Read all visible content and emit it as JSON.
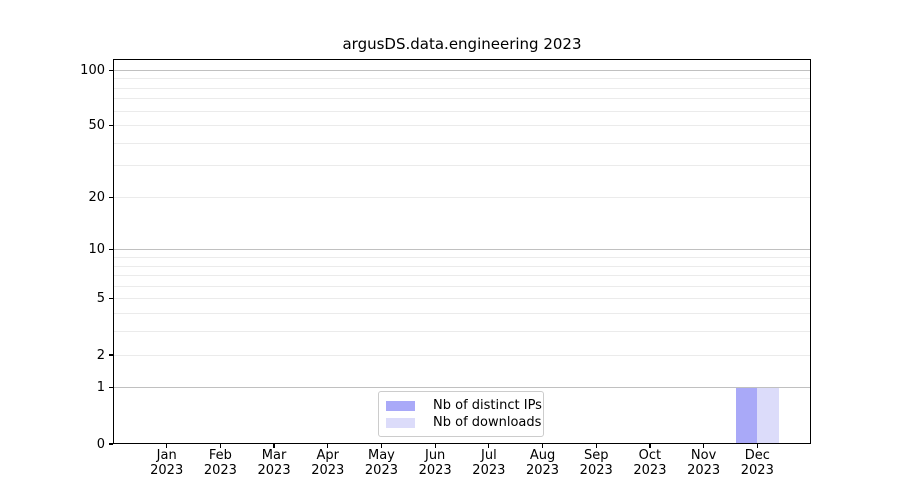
{
  "chart_data": {
    "type": "bar",
    "title": "argusDS.data.engineering 2023",
    "categories": [
      {
        "month": "Jan",
        "year": "2023"
      },
      {
        "month": "Feb",
        "year": "2023"
      },
      {
        "month": "Mar",
        "year": "2023"
      },
      {
        "month": "Apr",
        "year": "2023"
      },
      {
        "month": "May",
        "year": "2023"
      },
      {
        "month": "Jun",
        "year": "2023"
      },
      {
        "month": "Jul",
        "year": "2023"
      },
      {
        "month": "Aug",
        "year": "2023"
      },
      {
        "month": "Sep",
        "year": "2023"
      },
      {
        "month": "Oct",
        "year": "2023"
      },
      {
        "month": "Nov",
        "year": "2023"
      },
      {
        "month": "Dec",
        "year": "2023"
      }
    ],
    "series": [
      {
        "name": "Nb of distinct IPs",
        "color": "#a9a9f8",
        "values": [
          0,
          0,
          0,
          0,
          0,
          0,
          0,
          0,
          0,
          0,
          0,
          1
        ]
      },
      {
        "name": "Nb of downloads",
        "color": "#dcdcfa",
        "values": [
          0,
          0,
          0,
          0,
          0,
          0,
          0,
          0,
          0,
          0,
          0,
          1
        ]
      }
    ],
    "xlabel": "",
    "ylabel": "",
    "yscale": "log1p",
    "ylim": [
      0,
      115
    ],
    "yticks": [
      0,
      1,
      2,
      5,
      10,
      20,
      50,
      100
    ],
    "yticks_major_grid": [
      1,
      10,
      100
    ],
    "yticks_minor_grid": [
      2,
      3,
      4,
      5,
      6,
      7,
      8,
      9,
      20,
      30,
      40,
      50,
      60,
      70,
      80,
      90
    ],
    "grid": "horizontal",
    "legend_position": "lower center",
    "colors": {
      "grid_major": "#c0c0c0",
      "grid_minor": "#ebebeb",
      "spine": "#000000",
      "background": "#ffffff"
    }
  }
}
